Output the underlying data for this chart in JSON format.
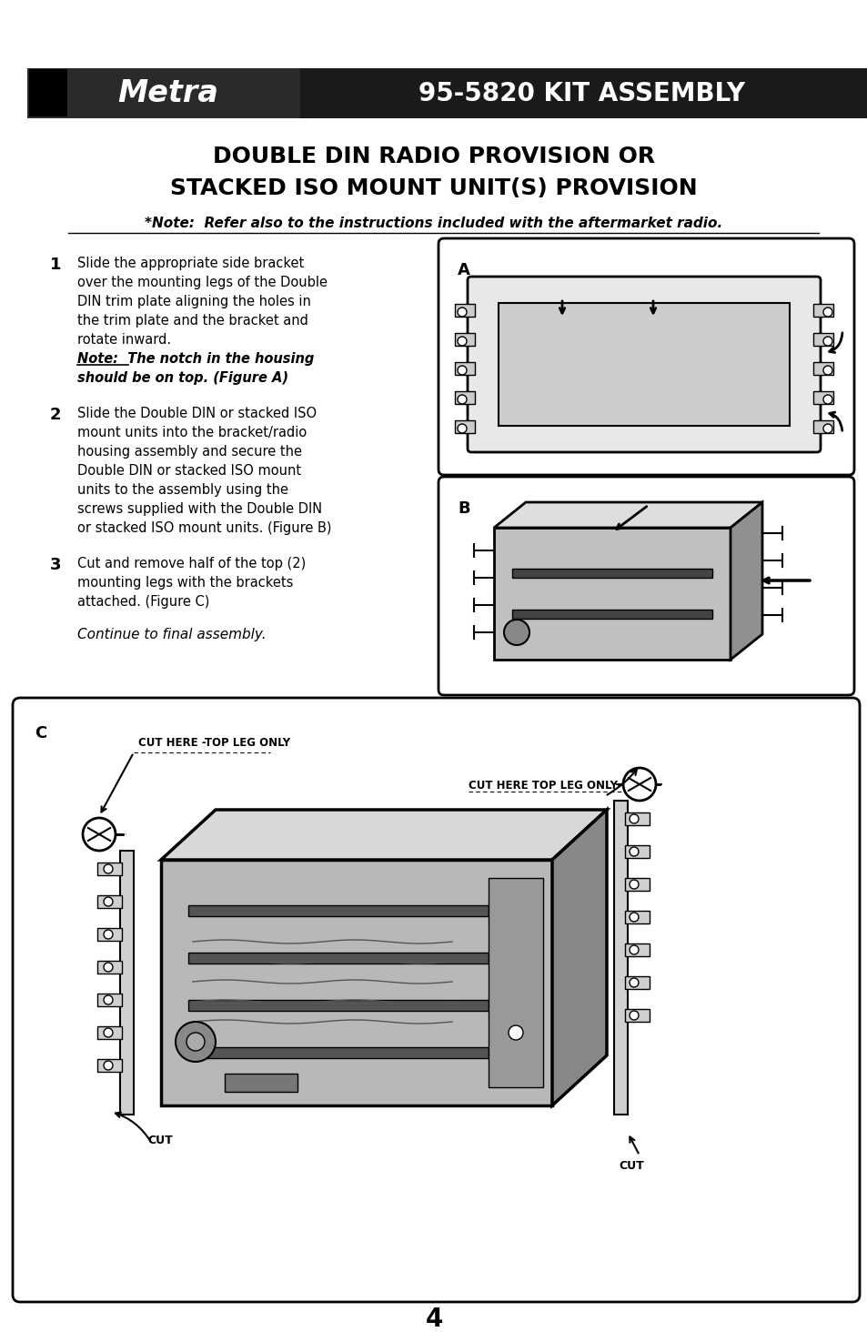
{
  "page_bg": "#ffffff",
  "header_bg": "#1a1a1a",
  "header_text": "95-5820 KIT ASSEMBLY",
  "header_text_color": "#ffffff",
  "title_line1": "DOUBLE DIN RADIO PROVISION OR",
  "title_line2": "STACKED ISO MOUNT UNIT(S) PROVISION",
  "note_line": "*Note:  Refer also to the instructions included with the aftermarket radio.",
  "step1_num": "1",
  "step2_num": "2",
  "step3_num": "3",
  "step1_lines": [
    "Slide the appropriate side bracket",
    "over the mounting legs of the Double",
    "DIN trim plate aligning the holes in",
    "the trim plate and the bracket and",
    "rotate inward."
  ],
  "step1_note_line1": "Note:  The notch in the housing",
  "step1_note_line2": "should be on top. (Figure A)",
  "step2_lines": [
    "Slide the Double DIN or stacked ISO",
    "mount units into the bracket/radio",
    "housing assembly and secure the",
    "Double DIN or stacked ISO mount",
    "units to the assembly using the",
    "screws supplied with the Double DIN",
    "or stacked ISO mount units. (Figure B)"
  ],
  "step3_lines": [
    "Cut and remove half of the top (2)",
    "mounting legs with the brackets",
    "attached. (Figure C)"
  ],
  "continue_text": "Continue to final assembly.",
  "page_number": "4",
  "fig_a_label": "A",
  "fig_b_label": "B",
  "fig_c_label": "C",
  "cut_label1": "CUT HERE -TOP LEG ONLY",
  "cut_label2": "CUT HERE TOP LEG ONLY",
  "cut_label3": "CUT",
  "cut_label4": "CUT"
}
